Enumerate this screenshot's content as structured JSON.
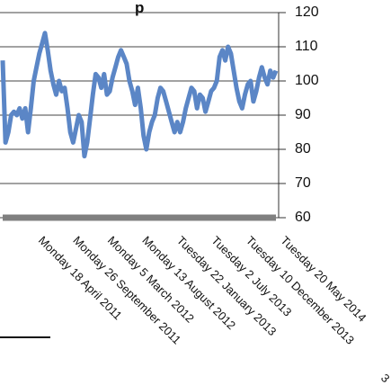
{
  "chart_data": {
    "type": "line",
    "title_fragment": "p",
    "x_labels": [
      "Monday 18 April 2011",
      "Monday 26 September 2011",
      "Monday 5 March 2012",
      "Monday 13 August 2012",
      "Tuesday 22 January 2013",
      "Tuesday 2 July 2013",
      "Tuesday 10 December 2013",
      "Tuesday 20 May 2014"
    ],
    "x_label_cut": "3",
    "yticks": [
      60,
      70,
      80,
      90,
      100,
      110,
      120
    ],
    "ylim": [
      60,
      120
    ],
    "grid": true,
    "series": [
      {
        "color": "#5B86C6",
        "values": [
          106,
          82,
          85,
          90,
          91,
          90,
          92,
          89,
          92,
          85,
          92,
          100,
          104,
          108,
          111,
          114,
          109,
          103,
          99,
          96,
          100,
          97,
          98,
          92,
          85,
          82,
          86,
          90,
          88,
          78,
          82,
          89,
          96,
          102,
          101,
          98,
          102,
          96,
          97,
          101,
          104,
          107,
          109,
          107,
          105,
          100,
          97,
          93,
          98,
          92,
          84,
          80,
          85,
          88,
          90,
          95,
          98,
          97,
          94,
          91,
          88,
          85,
          88,
          85,
          88,
          92,
          95,
          98,
          97,
          92,
          96,
          95,
          91,
          94,
          97,
          98,
          100,
          107,
          109,
          106,
          110,
          108,
          103,
          98,
          94,
          92,
          96,
          99,
          100,
          94,
          97,
          101,
          104,
          101,
          99,
          103,
          101,
          103
        ]
      },
      {
        "color": "#808080",
        "values": [
          60,
          60
        ]
      }
    ]
  }
}
